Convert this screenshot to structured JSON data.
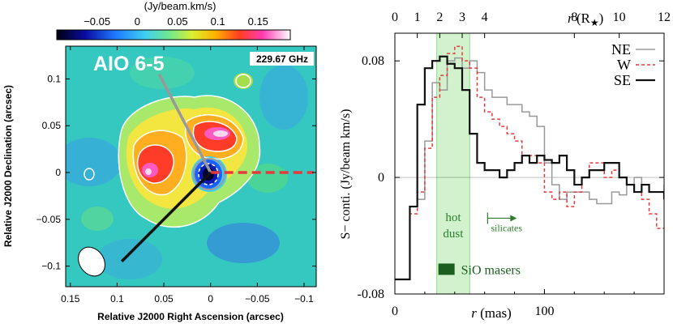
{
  "map": {
    "source_label": "AIO 6-5",
    "frequency": "229.67 GHz",
    "colorbar": {
      "unit": "(Jy/beam.km/s)",
      "ticks": [
        "−0.05",
        "0",
        "0.05",
        "0.1",
        "0.15"
      ],
      "tick_values": [
        -0.05,
        0,
        0.05,
        0.1,
        0.15
      ],
      "range": [
        -0.1,
        0.19
      ]
    },
    "xlabel": "Relative J2000 Right Ascension (arcsec)",
    "ylabel": "Relative J2000 Declination (arcsec)",
    "xticks": [
      "0.15",
      "0.1",
      "0.05",
      "0",
      "−0.05",
      "−0.1"
    ],
    "xtick_values": [
      0.15,
      0.1,
      0.05,
      0,
      -0.05,
      -0.1
    ],
    "yticks": [
      "0.1",
      "0.05",
      "0",
      "−0.05",
      "−0.1"
    ],
    "ytick_values": [
      0.1,
      0.05,
      0,
      -0.05,
      -0.1
    ],
    "xlim": [
      0.155,
      -0.113
    ],
    "ylim": [
      -0.122,
      0.135
    ],
    "cuts": [
      {
        "name": "NE",
        "color": "#999999",
        "dash": false,
        "end": [
          0.055,
          0.105
        ]
      },
      {
        "name": "W",
        "color": "#e8393a",
        "dash": true,
        "end": [
          -0.11,
          0.0
        ]
      },
      {
        "name": "SE",
        "color": "#111111",
        "dash": false,
        "end": [
          0.095,
          -0.095
        ]
      }
    ]
  },
  "chart_data": {
    "type": "line",
    "xlabel": "r (mas)",
    "ylabel": "S− conti. (Jy/beam km/s)",
    "top_xlabel": "r (R★)",
    "xlim": [
      0,
      180
    ],
    "ylim": [
      -0.08,
      0.099
    ],
    "xticks": [
      "0",
      "100"
    ],
    "xtick_values": [
      0,
      100
    ],
    "yticks": [
      "-0.08",
      "0",
      "0.08"
    ],
    "ytick_values": [
      -0.08,
      0,
      0.08
    ],
    "top_ticks": [
      "0",
      "1",
      "2",
      "3",
      "4",
      "8",
      "10",
      "12"
    ],
    "top_tick_values": [
      0,
      1,
      2,
      3,
      4,
      8,
      10,
      12
    ],
    "top_axis_mas_per_rstar": 15.0,
    "shaded_band": {
      "x0": 28,
      "x1": 50,
      "label_line1": "hot",
      "label_line2": "dust"
    },
    "silicates": {
      "x": 62,
      "label": "silicates"
    },
    "sio_masers": {
      "label": "SiO masers"
    },
    "series": [
      {
        "name": "NE",
        "color": "#999999",
        "dash": false,
        "x": [
          0,
          5,
          10,
          15,
          20,
          25,
          30,
          35,
          40,
          45,
          50,
          55,
          60,
          65,
          70,
          75,
          80,
          85,
          90,
          95,
          100,
          105,
          110,
          115,
          120,
          125,
          130,
          135,
          140,
          145,
          150,
          155,
          160,
          165,
          170,
          175,
          180
        ],
        "y": [
          -0.07,
          -0.07,
          -0.02,
          -0.015,
          0.025,
          0.065,
          0.06,
          0.08,
          0.082,
          0.075,
          0.08,
          0.072,
          0.06,
          0.055,
          0.055,
          0.05,
          0.05,
          0.045,
          0.042,
          0.035,
          0.01,
          -0.005,
          -0.015,
          -0.01,
          -0.01,
          -0.01,
          -0.015,
          -0.018,
          -0.018,
          -0.01,
          -0.012,
          -0.005,
          0.0,
          -0.005,
          -0.01,
          -0.01,
          -0.005
        ]
      },
      {
        "name": "W",
        "color": "#e8393a",
        "dash": true,
        "x": [
          0,
          5,
          10,
          15,
          20,
          25,
          30,
          35,
          40,
          45,
          50,
          55,
          60,
          65,
          70,
          75,
          80,
          85,
          90,
          95,
          100,
          105,
          110,
          115,
          120,
          125,
          130,
          135,
          140,
          145,
          150,
          155,
          160,
          165,
          170,
          175,
          180
        ],
        "y": [
          -0.07,
          -0.07,
          -0.025,
          -0.01,
          0.02,
          0.055,
          0.07,
          0.085,
          0.09,
          0.08,
          0.075,
          0.055,
          0.045,
          0.04,
          0.035,
          0.03,
          0.025,
          0.015,
          0.015,
          0.01,
          -0.01,
          -0.015,
          -0.01,
          -0.02,
          -0.01,
          0.0,
          0.01,
          0.01,
          0.0,
          0.005,
          0.0,
          -0.005,
          -0.01,
          -0.015,
          -0.025,
          -0.035,
          -0.035
        ]
      },
      {
        "name": "SE",
        "color": "#111111",
        "dash": false,
        "x": [
          0,
          5,
          10,
          15,
          20,
          25,
          30,
          35,
          40,
          45,
          50,
          55,
          60,
          65,
          70,
          75,
          80,
          85,
          90,
          95,
          100,
          105,
          110,
          115,
          120,
          125,
          130,
          135,
          140,
          145,
          150,
          155,
          160,
          165,
          170,
          175,
          180
        ],
        "y": [
          -0.07,
          -0.07,
          -0.02,
          0.05,
          0.075,
          0.08,
          0.083,
          0.078,
          0.075,
          0.06,
          0.03,
          0.01,
          0.005,
          0.005,
          0.0,
          0.005,
          0.01,
          0.015,
          0.01,
          0.015,
          0.012,
          0.01,
          0.015,
          0.005,
          -0.005,
          0.0,
          0.005,
          0.005,
          0.01,
          0.01,
          0.0,
          -0.005,
          -0.01,
          -0.005,
          -0.01,
          -0.01,
          -0.015
        ]
      }
    ],
    "legend_position": "top-right"
  }
}
